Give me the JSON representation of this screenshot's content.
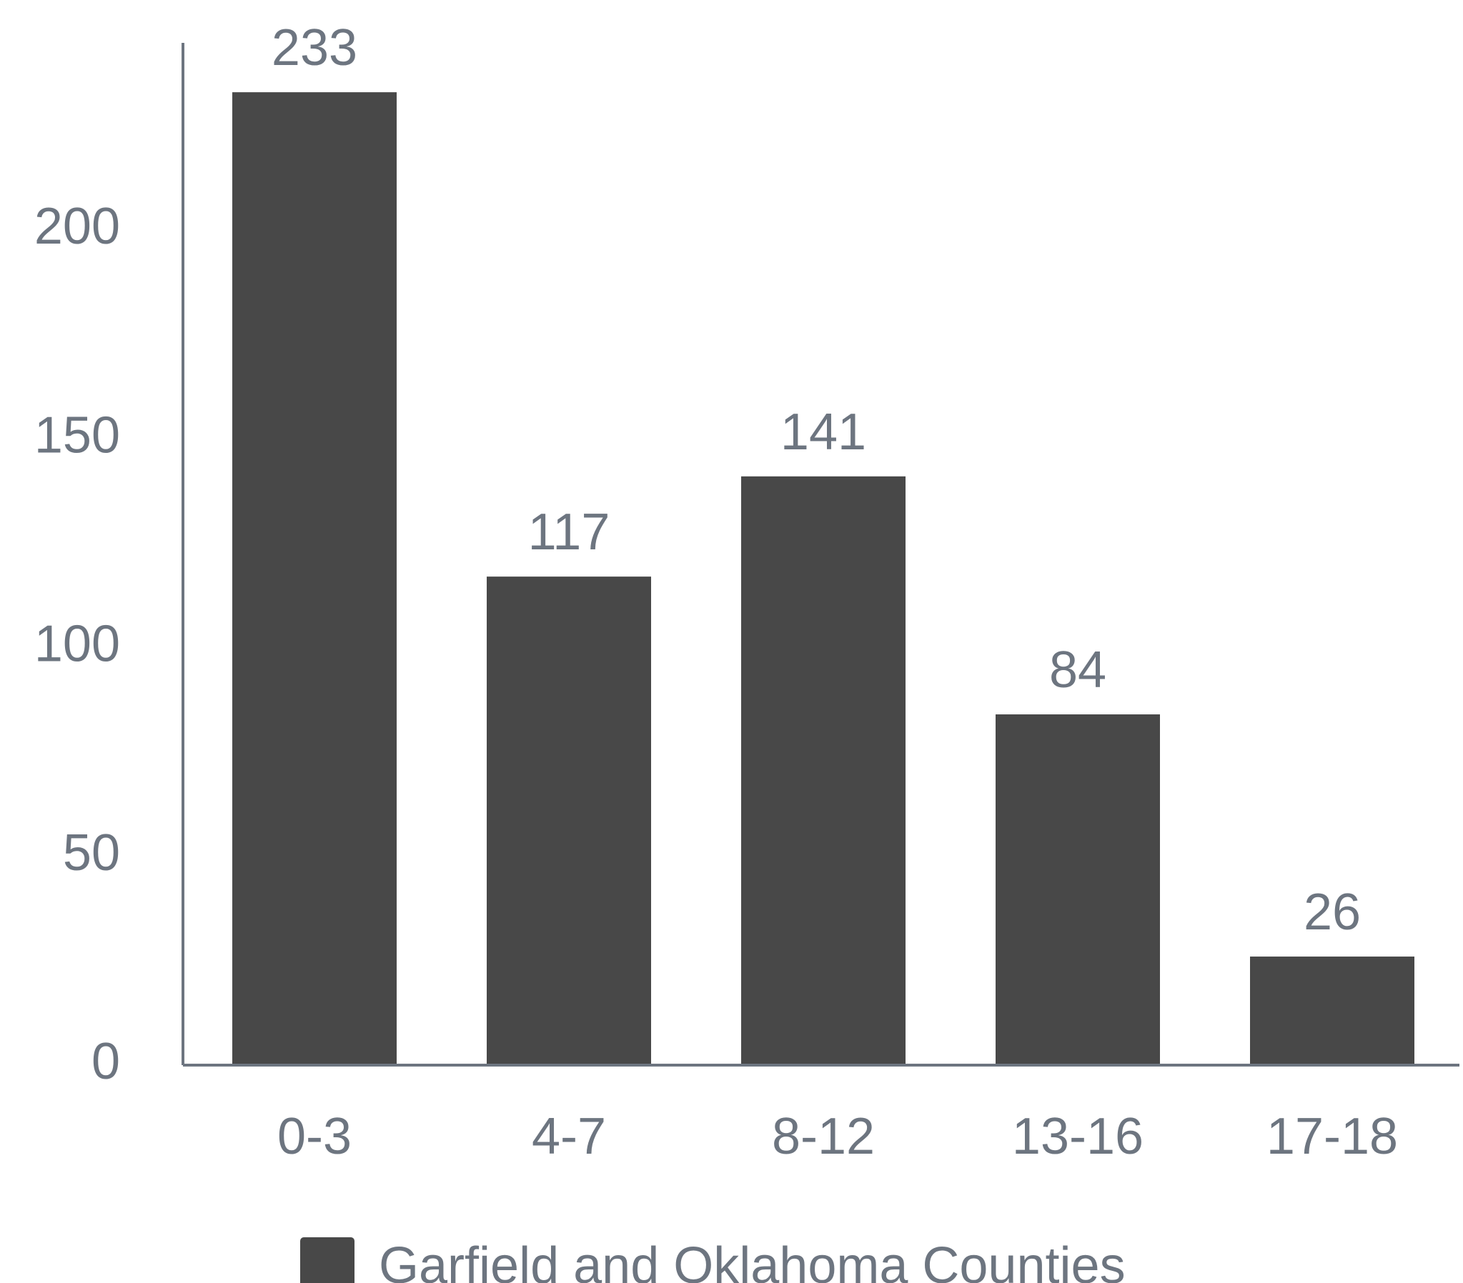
{
  "chart_data": {
    "type": "bar",
    "categories": [
      "0-3",
      "4-7",
      "8-12",
      "13-16",
      "17-18"
    ],
    "series": [
      {
        "name": "Garfield and Oklahoma Counties",
        "values": [
          233,
          117,
          141,
          84,
          26
        ]
      }
    ],
    "value_labels": [
      "233",
      "117",
      "141",
      "84",
      "26"
    ],
    "yticks": [
      0,
      50,
      100,
      150,
      200
    ],
    "ytick_labels": [
      "0",
      "50",
      "100",
      "150",
      "200"
    ],
    "ylim": [
      0,
      245
    ],
    "grid": false,
    "legend_position": "bottom",
    "colors": {
      "bar": "#484848",
      "axis": "#6d7580",
      "text": "#6d7580"
    }
  }
}
